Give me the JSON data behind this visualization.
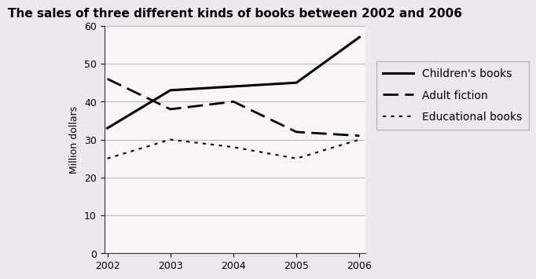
{
  "title": "The sales of three different kinds of books between 2002 and 2006",
  "ylabel": "Million dollars",
  "years": [
    2002,
    2003,
    2004,
    2005,
    2006
  ],
  "children_books": [
    33,
    43,
    44,
    45,
    57
  ],
  "adult_fiction": [
    46,
    38,
    40,
    32,
    31
  ],
  "educational_books": [
    25,
    30,
    28,
    25,
    30
  ],
  "ylim": [
    0,
    60
  ],
  "yticks": [
    0,
    10,
    20,
    30,
    40,
    50,
    60
  ],
  "background_color": "#ede8f0",
  "plot_bg_color": "#f8f4f8",
  "line_color": "#000000",
  "legend_children": "Children's books",
  "legend_adult": "Adult fiction",
  "legend_edu": "Educational books",
  "title_fontsize": 11,
  "axis_label_fontsize": 9,
  "tick_fontsize": 9,
  "legend_fontsize": 10
}
